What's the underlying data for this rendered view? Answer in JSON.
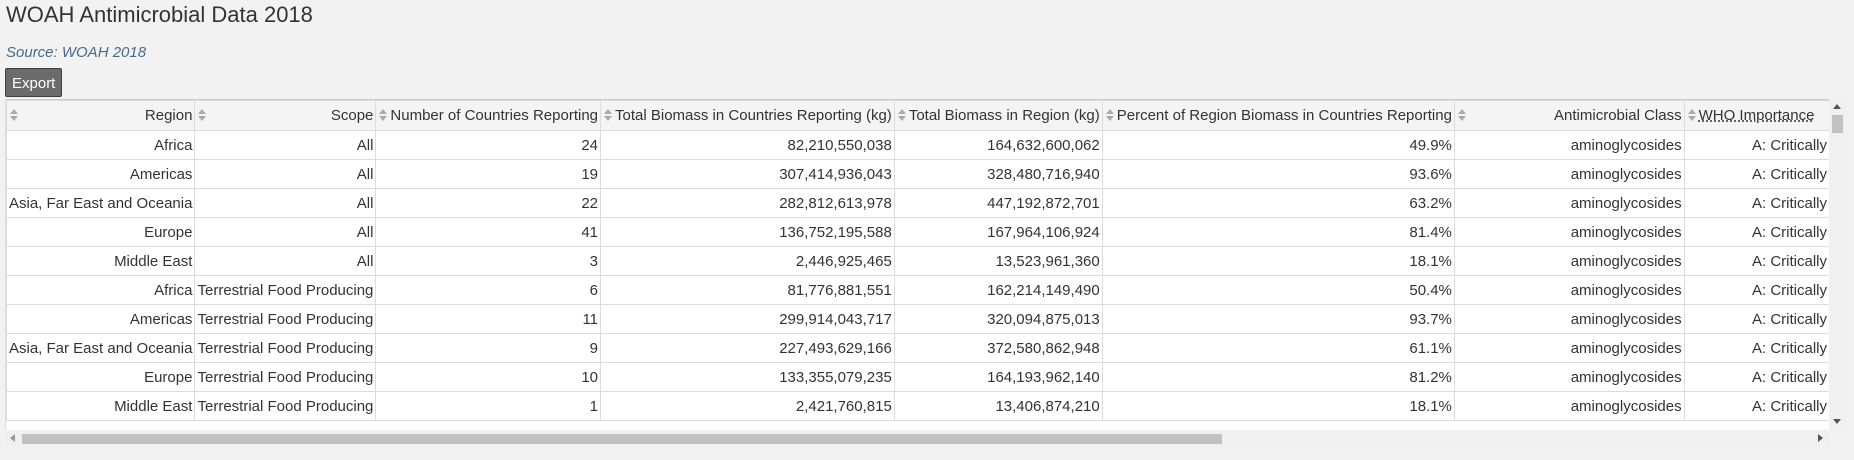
{
  "page": {
    "title": "WOAH Antimicrobial Data 2018",
    "source": "Source: WOAH 2018",
    "export_label": "Export"
  },
  "table": {
    "columns": [
      "Region",
      "Scope",
      "Number of Countries Reporting",
      "Total Biomass in Countries Reporting (kg)",
      "Total Biomass in Region (kg)",
      "Percent of Region Biomass in Countries Reporting",
      "Antimicrobial Class",
      "WHO Importance"
    ],
    "rows": [
      [
        "Africa",
        "All",
        "24",
        "82,210,550,038",
        "164,632,600,062",
        "49.9%",
        "aminoglycosides",
        "A: Critically"
      ],
      [
        "Americas",
        "All",
        "19",
        "307,414,936,043",
        "328,480,716,940",
        "93.6%",
        "aminoglycosides",
        "A: Critically"
      ],
      [
        "Asia, Far East and Oceania",
        "All",
        "22",
        "282,812,613,978",
        "447,192,872,701",
        "63.2%",
        "aminoglycosides",
        "A: Critically"
      ],
      [
        "Europe",
        "All",
        "41",
        "136,752,195,588",
        "167,964,106,924",
        "81.4%",
        "aminoglycosides",
        "A: Critically"
      ],
      [
        "Middle East",
        "All",
        "3",
        "2,446,925,465",
        "13,523,961,360",
        "18.1%",
        "aminoglycosides",
        "A: Critically"
      ],
      [
        "Africa",
        "Terrestrial Food Producing",
        "6",
        "81,776,881,551",
        "162,214,149,490",
        "50.4%",
        "aminoglycosides",
        "A: Critically"
      ],
      [
        "Americas",
        "Terrestrial Food Producing",
        "11",
        "299,914,043,717",
        "320,094,875,013",
        "93.7%",
        "aminoglycosides",
        "A: Critically"
      ],
      [
        "Asia, Far East and Oceania",
        "Terrestrial Food Producing",
        "9",
        "227,493,629,166",
        "372,580,862,948",
        "61.1%",
        "aminoglycosides",
        "A: Critically"
      ],
      [
        "Europe",
        "Terrestrial Food Producing",
        "10",
        "133,355,079,235",
        "164,193,962,140",
        "81.2%",
        "aminoglycosides",
        "A: Critically"
      ],
      [
        "Middle East",
        "Terrestrial Food Producing",
        "1",
        "2,421,760,815",
        "13,406,874,210",
        "18.1%",
        "aminoglycosides",
        "A: Critically"
      ]
    ]
  }
}
